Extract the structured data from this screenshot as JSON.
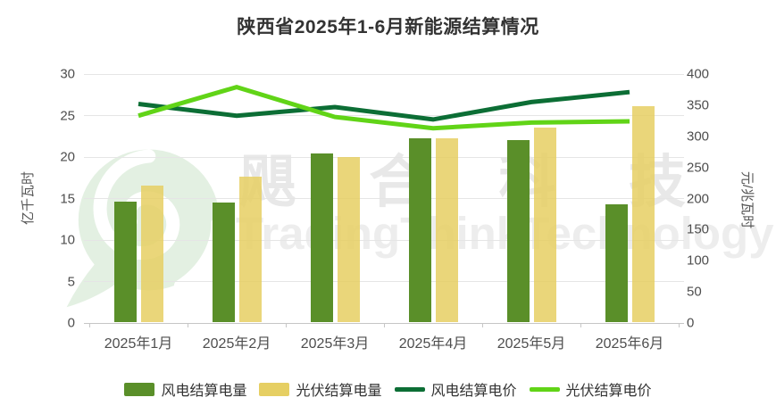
{
  "title": "陕西省2025年1-6月新能源结算情况",
  "watermark": {
    "logo_icon": "green-swirl-logo",
    "cn_text": "飓合科技",
    "en_text": "TradingThinkTechnology"
  },
  "chart_data": {
    "type": "bar+line combo",
    "categories": [
      "2025年1月",
      "2025年2月",
      "2025年3月",
      "2025年4月",
      "2025年5月",
      "2025年6月"
    ],
    "left_axis": {
      "title": "亿千瓦时",
      "min": 0,
      "max": 30,
      "ticks": [
        30,
        25,
        20,
        15,
        10,
        5,
        0
      ]
    },
    "right_axis": {
      "title": "元/兆瓦时",
      "min": 0,
      "max": 400,
      "ticks": [
        400,
        350,
        300,
        250,
        200,
        150,
        100,
        50,
        0
      ]
    },
    "grid": true,
    "legend_position": "bottom",
    "series": [
      {
        "name": "风电结算电量",
        "type": "bar",
        "axis": "left",
        "color": "#5a8f29",
        "fill_opacity": 1,
        "values": [
          14.5,
          14.4,
          20.3,
          22.1,
          21.9,
          14.2
        ]
      },
      {
        "name": "光伏结算电量",
        "type": "bar",
        "axis": "left",
        "color": "#e6cf63",
        "fill_opacity": 0.85,
        "values": [
          16.4,
          17.5,
          19.9,
          22.2,
          23.4,
          26.0
        ]
      },
      {
        "name": "风电结算电价",
        "type": "line",
        "axis": "right",
        "color": "#0c6e35",
        "values": [
          352,
          333,
          347,
          327,
          355,
          371
        ]
      },
      {
        "name": "光伏结算电价",
        "type": "line",
        "axis": "right",
        "color": "#61d417",
        "values": [
          333,
          379,
          331,
          313,
          322,
          324
        ]
      }
    ]
  }
}
